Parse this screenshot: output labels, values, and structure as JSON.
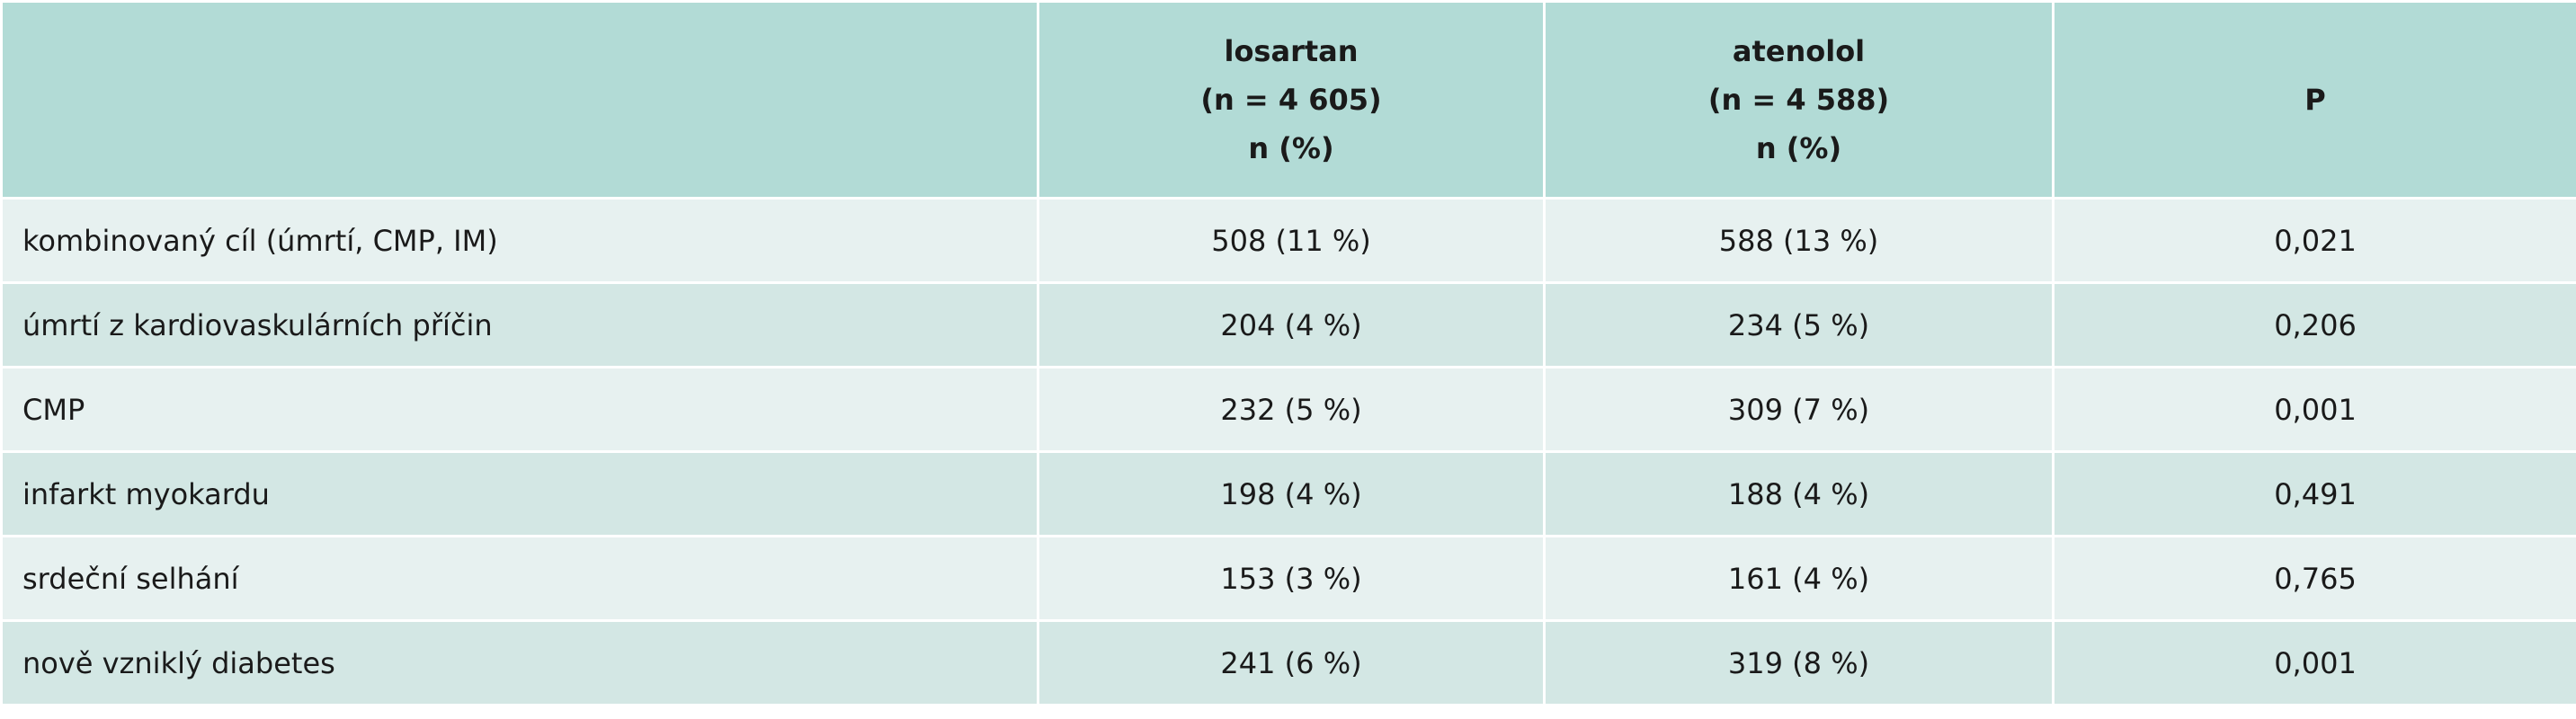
{
  "header": {
    "columns": [
      {
        "lines": [
          "losartan",
          "(n = 4 605)",
          "n (%)"
        ]
      },
      {
        "lines": [
          "atenolol",
          "(n = 4 588)",
          "n (%)"
        ]
      },
      {
        "lines": [
          "P"
        ]
      }
    ]
  },
  "table": {
    "rows": [
      [
        "kombinovaný cíl (úmrtí, CMP, IM)",
        "508 (11 %)",
        "588 (13 %)",
        "0,021"
      ],
      [
        "úmrtí z kardiovaskulárních příčin",
        "204 (4 %)",
        "234 (5 %)",
        "0,206"
      ],
      [
        "CMP",
        "232 (5 %)",
        "309 (7 %)",
        "0,001"
      ],
      [
        "infarkt myokardu",
        "198 (4 %)",
        "188 (4 %)",
        "0,491"
      ],
      [
        "srdeční selhání",
        "153 (3 %)",
        "161 (4 %)",
        "0,765"
      ],
      [
        "nově vzniklý diabetes",
        "241 (6 %)",
        "319 (8 %)",
        "0,001"
      ]
    ]
  }
}
